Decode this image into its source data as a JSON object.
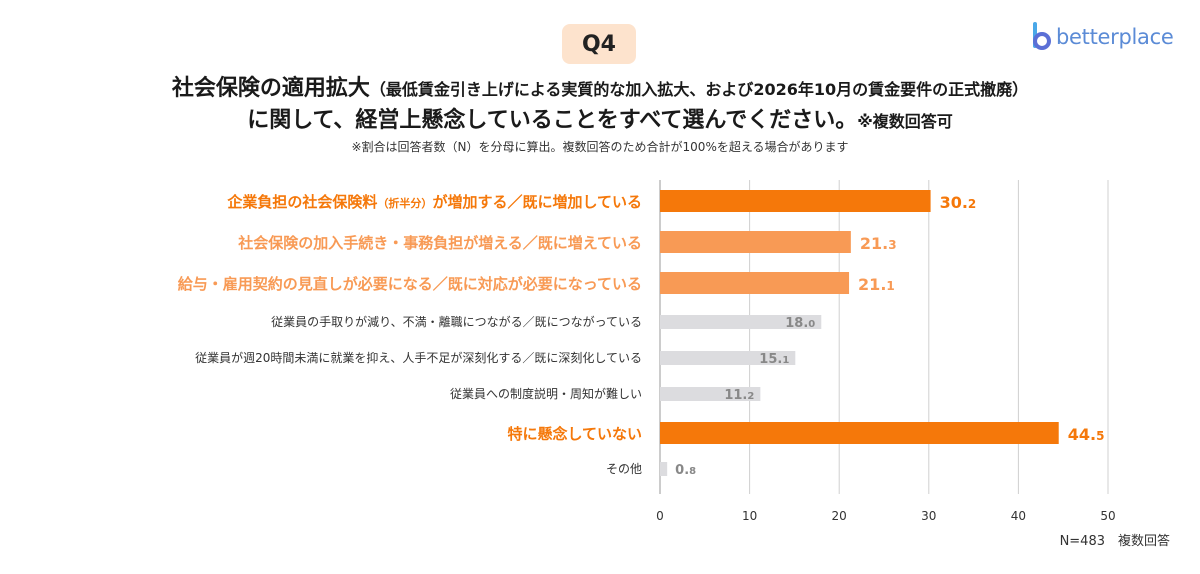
{
  "badge": "Q4",
  "logo": {
    "icon": "b-logo-icon",
    "text": "betterplace",
    "color": "#5b8bd6"
  },
  "title": {
    "line1_main": "社会保険の適用拡大",
    "line1_sub": "（最低賃金引き上げによる実質的な加入拡大、および2026年10月の賃金要件の正式撤廃）",
    "line2_main": "に関して、経営上懸念していることをすべて選んでください。",
    "line2_sub": "※複数回答可"
  },
  "note": "※割合は回答者数（N）を分母に算出。複数回答のため合計が100%を超える場合があります",
  "footer": "N=483　複数回答",
  "colors": {
    "dark_orange": "#f5780a",
    "light_orange": "#f89a55",
    "gray": "#dcdcdf",
    "gray_text": "#888888"
  },
  "chart_data": {
    "type": "bar",
    "orientation": "horizontal",
    "categories": [
      "企業負担の社会保険料（折半分）が増加する／既に増加している",
      "社会保険の加入手続き・事務負担が増える／既に増えている",
      "給与・雇用契約の見直しが必要になる／既に対応が必要になっている",
      "従業員の手取りが減り、不満・離職につながる／既につながっている",
      "従業員が週20時間未満に就業を抑え、人手不足が深刻化する／既に深刻化している",
      "従業員への制度説明・周知が難しい",
      "特に懸念していない",
      "その他"
    ],
    "label_parts": [
      [
        "企業負担の社会保険料",
        "（折半分）",
        "が増加する／既に増加している"
      ],
      [
        "社会保険の加入手続き・事務負担が増える／既に増えている"
      ],
      [
        "給与・雇用契約の見直しが必要になる／既に対応が必要になっている"
      ],
      [
        "従業員の手取りが減り、不満・離職につながる／既につながっている"
      ],
      [
        "従業員が週20時間未満に就業を抑え、人手不足が深刻化する／既に深刻化している"
      ],
      [
        "従業員への制度説明・周知が難しい"
      ],
      [
        "特に懸念していない"
      ],
      [
        "その他"
      ]
    ],
    "values": [
      30.2,
      21.3,
      21.1,
      18.0,
      15.1,
      11.2,
      44.5,
      0.8
    ],
    "value_labels": [
      "30.2",
      "21.3",
      "21.1",
      "18.0",
      "15.1",
      "11.2",
      "44.5",
      "0.8"
    ],
    "highlight": [
      "dark",
      "light",
      "light",
      "gray",
      "gray",
      "gray",
      "dark",
      "gray"
    ],
    "xlim": [
      0,
      50
    ],
    "xticks": [
      0,
      10,
      20,
      30,
      40,
      50
    ],
    "grid": true
  }
}
